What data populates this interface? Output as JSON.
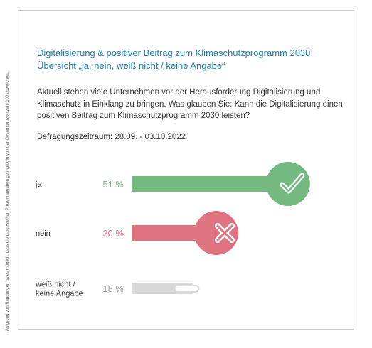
{
  "side_note": "Aufgrund von Rundungen ist es möglich, dass die dargestellten Prozentangaben geringfügig von der Gesamtprozentzahl 100 abweichen.",
  "title_line1": "Digitalisierung & positiver Beitrag zum Klimaschutzprogramm 2030",
  "title_line2": "Übersicht „ja, nein, weiß nicht / keine Angabe“",
  "question": "Aktuell stehen viele Unternehmen vor der Herausforderung Digitalisierung und Klimaschutz in Einklang zu bringen. Was glauben Sie: Kann die Digitalisierung einen positiven Beitrag zum Klimaschutzprogramm 2030 leisten?",
  "period": "Befragungszeitraum: 28.09. - 03.10.2022",
  "chart_data": {
    "type": "bar",
    "orientation": "horizontal",
    "categories": [
      "ja",
      "nein",
      "weiß nicht / keine Angabe"
    ],
    "category_lines": [
      [
        "ja"
      ],
      [
        "nein"
      ],
      [
        "weiß nicht /",
        "keine Angabe"
      ]
    ],
    "values": [
      51,
      30,
      18
    ],
    "value_labels": [
      "51 %",
      "30 %",
      "18 %"
    ],
    "unit": "%",
    "colors": [
      "#74b97f",
      "#df7380",
      "#d8d8d8"
    ],
    "label_colors": [
      "#74b97f",
      "#df7380",
      "#a0a0a0"
    ],
    "end_icons": [
      "check-icon",
      "cross-icon",
      "dash-icon"
    ]
  }
}
